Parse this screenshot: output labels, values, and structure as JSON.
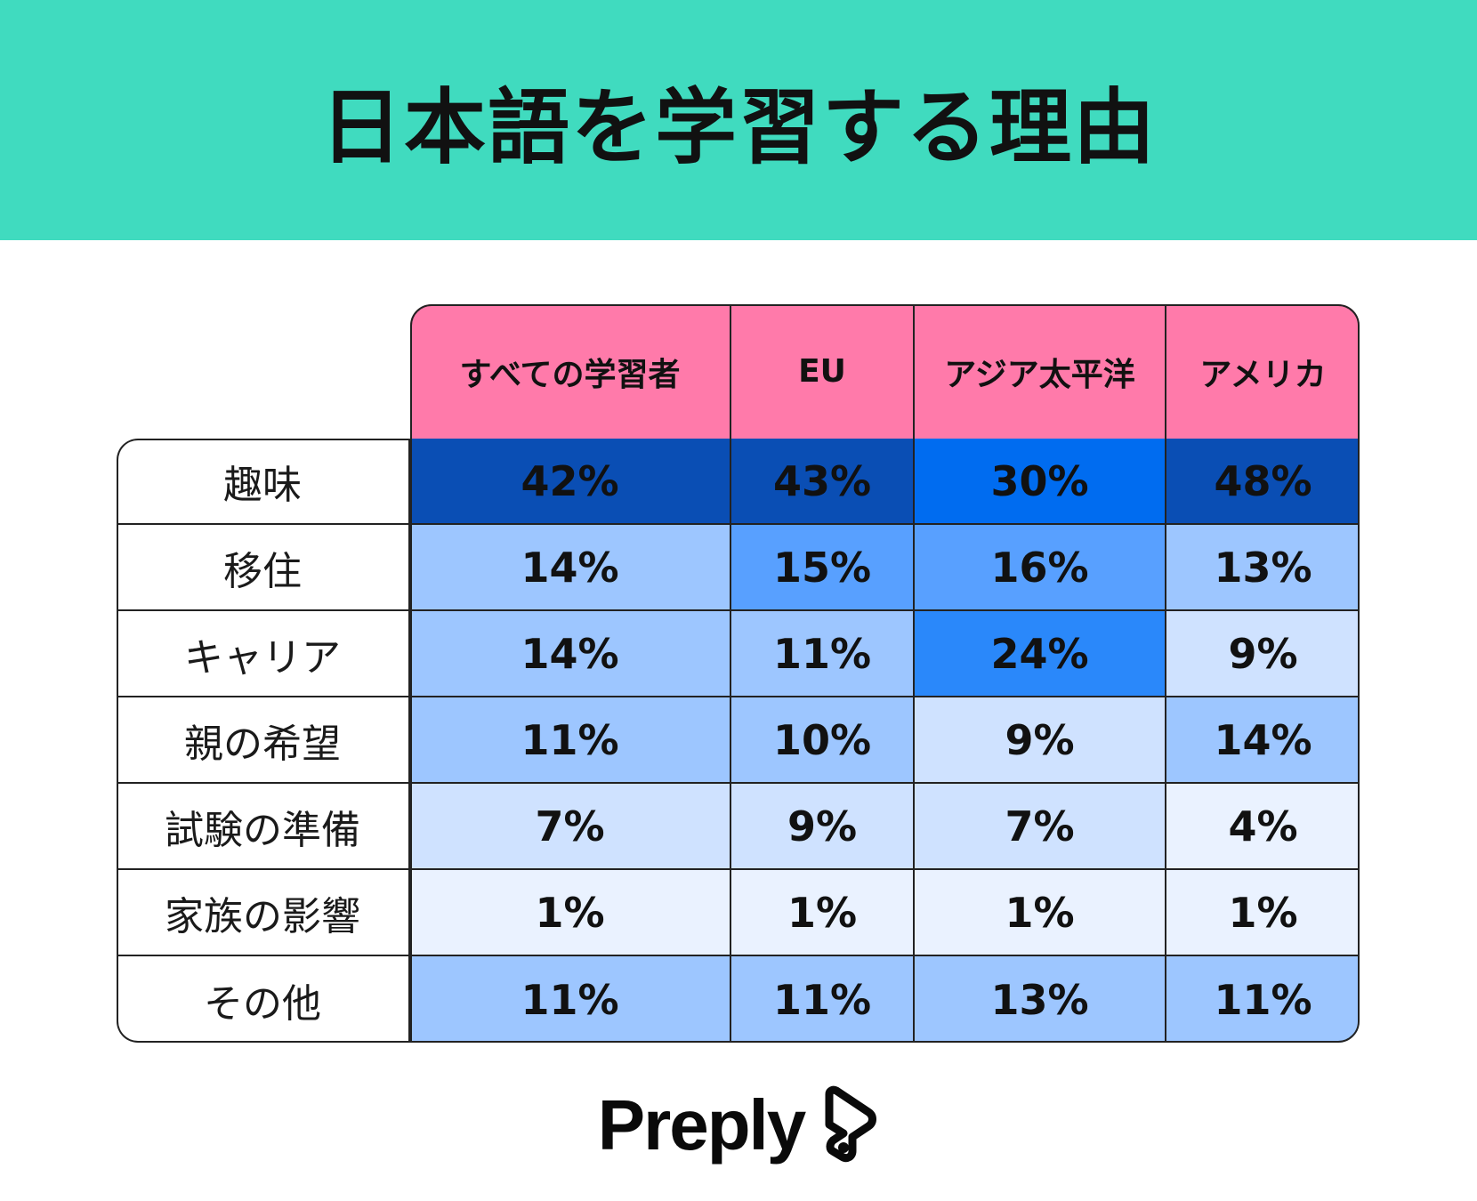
{
  "colors": {
    "banner": "#40DBBF",
    "header": "#FF7AAA",
    "levels": [
      "#EAF2FF",
      "#CFE2FF",
      "#9DC6FF",
      "#58A0FF",
      "#2A88FA",
      "#006CF0",
      "#0A4EB4"
    ]
  },
  "title": "日本語を学習する理由",
  "brand": "Preply",
  "chart_data": {
    "type": "table",
    "columns": [
      "すべての学習者",
      "EU",
      "アジア太平洋",
      "アメリカ"
    ],
    "rows": [
      {
        "label": "趣味",
        "values": [
          "42%",
          "43%",
          "30%",
          "48%"
        ],
        "levels": [
          6,
          6,
          5,
          6
        ]
      },
      {
        "label": "移住",
        "values": [
          "14%",
          "15%",
          "16%",
          "13%"
        ],
        "levels": [
          2,
          3,
          3,
          2
        ]
      },
      {
        "label": "キャリア",
        "values": [
          "14%",
          "11%",
          "24%",
          "9%"
        ],
        "levels": [
          2,
          2,
          4,
          1
        ]
      },
      {
        "label": "親の希望",
        "values": [
          "11%",
          "10%",
          "9%",
          "14%"
        ],
        "levels": [
          2,
          2,
          1,
          2
        ]
      },
      {
        "label": "試験の準備",
        "values": [
          "7%",
          "9%",
          "7%",
          "4%"
        ],
        "levels": [
          1,
          1,
          1,
          0
        ]
      },
      {
        "label": "家族の影響",
        "values": [
          "1%",
          "1%",
          "1%",
          "1%"
        ],
        "levels": [
          0,
          0,
          0,
          0
        ]
      },
      {
        "label": "その他",
        "values": [
          "11%",
          "11%",
          "13%",
          "11%"
        ],
        "levels": [
          2,
          2,
          2,
          2
        ]
      }
    ]
  }
}
